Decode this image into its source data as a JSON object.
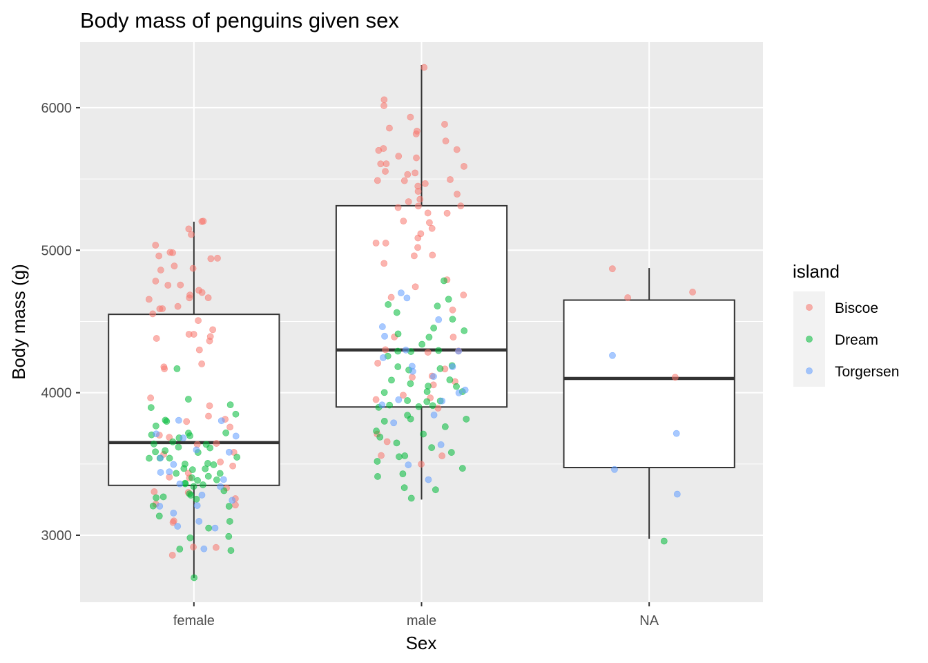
{
  "chart_data": {
    "type": "boxplot",
    "title": "Body mass of penguins given sex",
    "xlabel": "Sex",
    "ylabel": "Body mass (g)",
    "categories": [
      "female",
      "male",
      "NA"
    ],
    "ylim": [
      2530,
      6460
    ],
    "yticks": [
      3000,
      4000,
      5000,
      6000
    ],
    "grid": true,
    "legend": {
      "title": "island",
      "position": "right",
      "entries": [
        {
          "name": "Biscoe",
          "color": "#F8766D"
        },
        {
          "name": "Dream",
          "color": "#00BA38"
        },
        {
          "name": "Torgersen",
          "color": "#619CFF"
        }
      ]
    },
    "boxes": [
      {
        "category": "female",
        "whisker_low": 2700,
        "q1": 3350,
        "median": 3650,
        "q3": 4550,
        "whisker_high": 5200
      },
      {
        "category": "male",
        "whisker_low": 3250,
        "q1": 3900,
        "median": 4300,
        "q3": 5312,
        "whisker_high": 6300
      },
      {
        "category": "NA",
        "whisker_low": 2975,
        "q1": 3475,
        "median": 4100,
        "q3": 4650,
        "whisker_high": 4875
      }
    ],
    "points": [
      {
        "category": "female",
        "island": "Biscoe",
        "values": [
          4875,
          4950,
          5150,
          5050,
          4700,
          4900,
          4650,
          4400,
          4350,
          4300,
          4150,
          3600,
          3700,
          3200,
          3800,
          3900,
          4200,
          4400,
          4500,
          4600,
          4750,
          4800,
          5000,
          5100,
          5200,
          4950,
          4850,
          4650,
          4550,
          4400,
          3250,
          3300,
          3450,
          3400,
          2850,
          2900,
          3100,
          3350,
          3500,
          3650,
          4700,
          4600,
          4750,
          4950,
          5000,
          4650,
          4200,
          4400,
          4700,
          5200,
          4600,
          3750,
          3950,
          4450,
          3850,
          3700,
          3550,
          3200,
          3650,
          3800,
          2900,
          3100,
          3300,
          3400,
          3500
        ]
      },
      {
        "category": "female",
        "island": "Dream",
        "values": [
          3250,
          3450,
          3350,
          3400,
          3550,
          3300,
          3700,
          3500,
          3650,
          3600,
          3750,
          3800,
          3900,
          3950,
          3400,
          3250,
          3150,
          3050,
          2900,
          3000,
          3200,
          3350,
          3450,
          3600,
          3650,
          3700,
          3550,
          3500,
          3400,
          2700,
          3000,
          3200,
          3300,
          3400,
          3600,
          3800,
          4150,
          3850,
          3700,
          3600,
          3550,
          3450,
          3350,
          3300,
          2900,
          3100,
          3250,
          3450,
          3500,
          3600,
          3650,
          3700,
          3900,
          3350,
          3450,
          3550,
          3700
        ]
      },
      {
        "category": "female",
        "island": "Torgersen",
        "values": [
          3200,
          3350,
          3050,
          3450,
          3600,
          3700,
          3800,
          3700,
          3450,
          3300,
          3150,
          3050,
          3250,
          3350,
          3500,
          3550,
          3700,
          3800,
          3100,
          3200,
          3400,
          3600,
          2900
        ]
      },
      {
        "category": "male",
        "island": "Biscoe",
        "values": [
          6000,
          5950,
          5900,
          5850,
          5800,
          5700,
          5650,
          5600,
          5550,
          5500,
          5450,
          5400,
          5350,
          5300,
          5250,
          5200,
          5100,
          5050,
          5000,
          4950,
          4900,
          4750,
          4700,
          4650,
          4600,
          4400,
          4300,
          4200,
          4100,
          4050,
          4000,
          3950,
          3900,
          3700,
          3650,
          3550,
          3500,
          6300,
          6050,
          5700,
          5850,
          5600,
          5550,
          5500,
          5450,
          5400,
          5350,
          5300,
          5250,
          5150,
          5100,
          5050,
          4950,
          4800,
          4400,
          4300,
          4150,
          4100,
          3950,
          3550,
          5700,
          5650,
          5500,
          5550,
          5750,
          5600,
          5300,
          5200,
          4300,
          4075
        ]
      },
      {
        "category": "male",
        "island": "Dream",
        "values": [
          4300,
          4100,
          4050,
          3950,
          4000,
          3800,
          3700,
          3750,
          3900,
          4200,
          4300,
          4450,
          4500,
          4600,
          4800,
          3300,
          3400,
          3450,
          3500,
          3650,
          3600,
          3550,
          3800,
          3900,
          3950,
          4000,
          4050,
          4150,
          4250,
          4350,
          4400,
          4450,
          4550,
          4600,
          4650,
          3250,
          3350,
          3450,
          3550,
          3600,
          3750,
          3850,
          3950,
          4000,
          4100,
          4200,
          4300,
          3700,
          3800,
          3900,
          4050,
          4150,
          4400,
          3900
        ]
      },
      {
        "category": "male",
        "island": "Torgersen",
        "values": [
          4700,
          4650,
          4500,
          4450,
          4400,
          4300,
          4250,
          4200,
          4150,
          4100,
          4000,
          3950,
          3900,
          3850,
          3800,
          3650,
          3500,
          3400,
          4300,
          4200,
          3950,
          4000
        ]
      },
      {
        "category": "NA",
        "island": "Biscoe",
        "values": [
          4875,
          4725,
          4650,
          4100
        ]
      },
      {
        "category": "NA",
        "island": "Dream",
        "values": [
          2975
        ]
      },
      {
        "category": "NA",
        "island": "Torgersen",
        "values": [
          4250,
          3700,
          3475,
          3300
        ]
      }
    ]
  }
}
